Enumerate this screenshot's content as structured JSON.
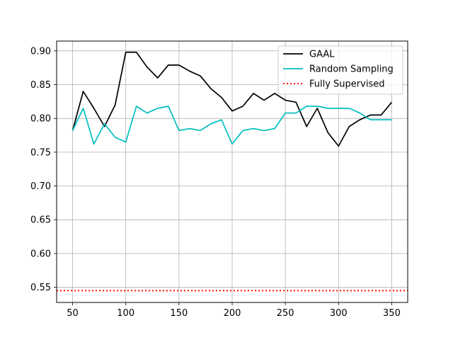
{
  "chart_data": {
    "type": "line",
    "title": "",
    "xlabel": "",
    "ylabel": "",
    "xlim": [
      35,
      365
    ],
    "ylim": [
      0.5275,
      0.9145
    ],
    "xticks": [
      50,
      100,
      150,
      200,
      250,
      300,
      350
    ],
    "xtick_labels": [
      "50",
      "100",
      "150",
      "200",
      "250",
      "300",
      "350"
    ],
    "yticks": [
      0.55,
      0.6,
      0.65,
      0.7,
      0.75,
      0.8,
      0.85,
      0.9
    ],
    "ytick_labels": [
      "0.55",
      "0.60",
      "0.65",
      "0.70",
      "0.75",
      "0.80",
      "0.85",
      "0.90"
    ],
    "grid": true,
    "legend_position": "top-right",
    "x": [
      50,
      60,
      70,
      80,
      90,
      100,
      110,
      120,
      130,
      140,
      150,
      160,
      170,
      180,
      190,
      200,
      210,
      220,
      230,
      240,
      250,
      260,
      270,
      280,
      290,
      300,
      310,
      320,
      330,
      340,
      350
    ],
    "series": [
      {
        "name": "GAAL",
        "color": "#000000",
        "style": "solid",
        "values": [
          0.782,
          0.84,
          0.815,
          0.788,
          0.82,
          0.898,
          0.898,
          0.876,
          0.86,
          0.879,
          0.879,
          0.87,
          0.863,
          0.844,
          0.831,
          0.811,
          0.818,
          0.837,
          0.827,
          0.837,
          0.827,
          0.824,
          0.788,
          0.815,
          0.779,
          0.759,
          0.788,
          0.798,
          0.805,
          0.805,
          0.824
        ]
      },
      {
        "name": "Random Sampling",
        "color": "#00bfbf",
        "style": "solid",
        "values": [
          0.782,
          0.815,
          0.762,
          0.792,
          0.772,
          0.765,
          0.818,
          0.808,
          0.815,
          0.818,
          0.782,
          0.785,
          0.782,
          0.792,
          0.798,
          0.762,
          0.782,
          0.785,
          0.782,
          0.785,
          0.808,
          0.808,
          0.818,
          0.818,
          0.815,
          0.815,
          0.815,
          0.808,
          0.798,
          0.798,
          0.798
        ]
      },
      {
        "name": "Fully Supervised",
        "color": "#ff0000",
        "style": "dotted",
        "constant": 0.545
      }
    ]
  }
}
